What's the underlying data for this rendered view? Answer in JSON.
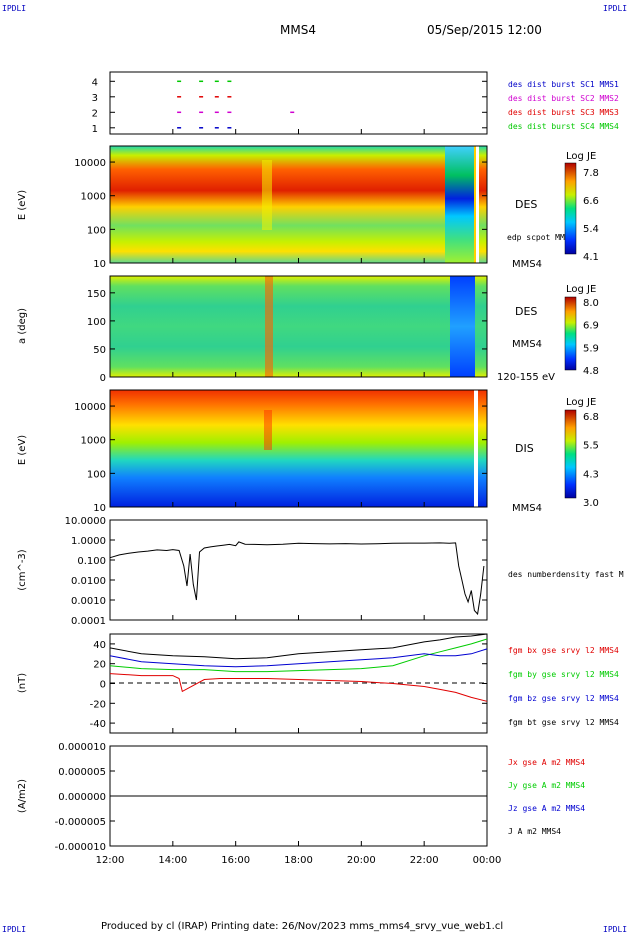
{
  "header": {
    "corner_tl": "IPDLI",
    "corner_tr": "IPDLI",
    "corner_bl": "IPDLI",
    "corner_br": "IPDLI",
    "spacecraft": "MMS4",
    "datetime": "05/Sep/2015 12:00"
  },
  "footer": {
    "credit": "Produced by cl (IRAP)   Printing date: 26/Nov/2023   mms_mms4_srvy_vue_web1.cl"
  },
  "colors": {
    "mms1": "#0000c8",
    "mms2": "#d000d0",
    "mms3": "#e00000",
    "mms4": "#00c800",
    "bx": "#e00000",
    "by": "#00cc00",
    "bz": "#0000d0",
    "bt": "#000000"
  },
  "chart_data": [
    {
      "type": "scatter",
      "id": "burst",
      "yticks": [
        "1",
        "2",
        "3",
        "4"
      ],
      "legend": [
        {
          "label": "des dist burst SC1 MMS1",
          "color": "#0000c8"
        },
        {
          "label": "des dist burst SC2 MMS2",
          "color": "#d000d0"
        },
        {
          "label": "des dist burst SC3 MMS3",
          "color": "#e00000"
        },
        {
          "label": "des dist burst SC4 MMS4",
          "color": "#00c800"
        }
      ],
      "series": [
        {
          "sc": 4,
          "x": [
            14.2,
            14.9,
            15.4,
            15.8
          ]
        },
        {
          "sc": 3,
          "x": [
            14.2,
            14.9,
            15.4,
            15.8
          ]
        },
        {
          "sc": 2,
          "x": [
            14.2,
            14.9,
            15.4,
            15.8,
            17.8
          ]
        },
        {
          "sc": 1,
          "x": [
            14.2,
            14.9,
            15.4,
            15.8
          ]
        }
      ]
    },
    {
      "type": "heatmap",
      "id": "des-energy",
      "ylabel": "E (eV)",
      "yticks": [
        "10",
        "100",
        "1000",
        "10000"
      ],
      "ylim": [
        10,
        30000
      ],
      "side_label": "DES",
      "overlay_label": "edp scpot MMS4",
      "bottom_label": "MMS4",
      "colorbar": {
        "title": "Log JE",
        "ticks": [
          "7.8",
          "6.6",
          "5.4",
          "4.1"
        ]
      }
    },
    {
      "type": "heatmap",
      "id": "des-pitch",
      "ylabel": "a (deg)",
      "yticks": [
        "0",
        "50",
        "100",
        "150"
      ],
      "ylim": [
        0,
        180
      ],
      "side_label": "DES",
      "sc_label": "MMS4",
      "range_label": "120-155 eV",
      "colorbar": {
        "title": "Log JE",
        "ticks": [
          "8.0",
          "6.9",
          "5.9",
          "4.8"
        ]
      }
    },
    {
      "type": "heatmap",
      "id": "dis-energy",
      "ylabel": "E (eV)",
      "yticks": [
        "10",
        "100",
        "1000",
        "10000"
      ],
      "ylim": [
        10,
        30000
      ],
      "side_label": "DIS",
      "bottom_label": "MMS4",
      "colorbar": {
        "title": "Log JE",
        "ticks": [
          "6.8",
          "5.5",
          "4.3",
          "3.0"
        ]
      }
    },
    {
      "type": "line",
      "id": "density",
      "ylabel": "(cm^-3)",
      "yticks": [
        "0.0001",
        "0.0010",
        "0.0100",
        "0.100",
        "1.0000",
        "10.0000"
      ],
      "ylim": [
        0.0001,
        10
      ],
      "yscale": "log",
      "legend": [
        {
          "label": "des numberdensity fast M",
          "color": "#000000"
        }
      ],
      "series": [
        {
          "name": "des numberdensity fast M",
          "x": [
            12.0,
            12.3,
            12.6,
            12.9,
            13.2,
            13.5,
            13.8,
            14.0,
            14.2,
            14.35,
            14.45,
            14.55,
            14.65,
            14.75,
            14.85,
            15.0,
            15.2,
            15.4,
            15.6,
            15.8,
            16.0,
            16.1,
            16.3,
            16.6,
            17.0,
            17.5,
            18.0,
            18.5,
            19.0,
            19.5,
            20.0,
            20.5,
            21.0,
            21.5,
            22.0,
            22.5,
            22.8,
            23.0,
            23.1,
            23.2,
            23.3,
            23.4,
            23.5,
            23.6,
            23.7,
            23.8,
            23.9
          ],
          "y": [
            0.13,
            0.18,
            0.22,
            0.25,
            0.28,
            0.32,
            0.3,
            0.33,
            0.3,
            0.05,
            0.005,
            0.2,
            0.006,
            0.001,
            0.25,
            0.4,
            0.45,
            0.5,
            0.55,
            0.6,
            0.52,
            0.8,
            0.62,
            0.6,
            0.58,
            0.62,
            0.68,
            0.66,
            0.64,
            0.66,
            0.63,
            0.65,
            0.68,
            0.7,
            0.7,
            0.72,
            0.68,
            0.72,
            0.05,
            0.01,
            0.002,
            0.0008,
            0.003,
            0.0003,
            0.0002,
            0.002,
            0.05
          ]
        }
      ]
    },
    {
      "type": "line",
      "id": "bfield",
      "ylabel": "(nT)",
      "yticks": [
        "-40",
        "-20",
        "0",
        "20",
        "40"
      ],
      "ylim": [
        -50,
        50
      ],
      "legend": [
        {
          "label": "fgm bx gse srvy l2 MMS4",
          "color": "#e00000"
        },
        {
          "label": "fgm by gse srvy l2 MMS4",
          "color": "#00cc00"
        },
        {
          "label": "fgm bz gse srvy l2 MMS4",
          "color": "#0000d0"
        },
        {
          "label": "fgm bt gse srvy l2 MMS4",
          "color": "#000000"
        }
      ],
      "series": [
        {
          "name": "bx",
          "x": [
            12,
            13,
            14,
            14.2,
            14.3,
            15,
            15.5,
            16,
            17,
            18,
            19,
            20,
            21,
            22,
            22.5,
            23,
            23.5,
            24
          ],
          "y": [
            10,
            8,
            8,
            5,
            -8,
            4,
            5,
            5,
            5,
            4,
            3,
            2,
            0,
            -3,
            -6,
            -9,
            -14,
            -18
          ]
        },
        {
          "name": "by",
          "x": [
            12,
            13,
            14,
            15,
            16,
            17,
            18,
            19,
            20,
            21,
            22,
            22.5,
            23,
            23.5,
            24
          ],
          "y": [
            18,
            15,
            14,
            14,
            12,
            12,
            13,
            14,
            15,
            18,
            28,
            32,
            36,
            40,
            45
          ]
        },
        {
          "name": "bz",
          "x": [
            12,
            13,
            14,
            15,
            16,
            17,
            18,
            19,
            20,
            21,
            22,
            22.5,
            23,
            23.5,
            24
          ],
          "y": [
            28,
            22,
            20,
            18,
            17,
            18,
            20,
            22,
            24,
            26,
            30,
            28,
            28,
            30,
            35
          ]
        },
        {
          "name": "bt",
          "x": [
            12,
            13,
            14,
            15,
            16,
            17,
            18,
            19,
            20,
            21,
            22,
            22.5,
            23,
            23.5,
            24
          ],
          "y": [
            36,
            30,
            28,
            27,
            25,
            26,
            30,
            32,
            34,
            36,
            42,
            44,
            47,
            48,
            50
          ]
        }
      ]
    },
    {
      "type": "line",
      "id": "current",
      "ylabel": "(A/m2)",
      "yticks": [
        "-0.000010",
        "-0.000005",
        "0.000000",
        "0.000005",
        "0.000010"
      ],
      "ylim": [
        -1e-05,
        1e-05
      ],
      "legend": [
        {
          "label": "Jx gse A m2 MMS4",
          "color": "#e00000"
        },
        {
          "label": "Jy gse A m2 MMS4",
          "color": "#00cc00"
        },
        {
          "label": "Jz gse A m2 MMS4",
          "color": "#0000d0"
        },
        {
          "label": "J A m2 MMS4",
          "color": "#000000"
        }
      ],
      "series": [
        {
          "name": "J",
          "x": [
            12,
            24
          ],
          "y": [
            0,
            0
          ]
        }
      ]
    }
  ],
  "time_axis": {
    "ticks": [
      "12:00",
      "14:00",
      "16:00",
      "18:00",
      "20:00",
      "22:00",
      "00:00"
    ],
    "xlim": [
      12,
      24
    ]
  }
}
